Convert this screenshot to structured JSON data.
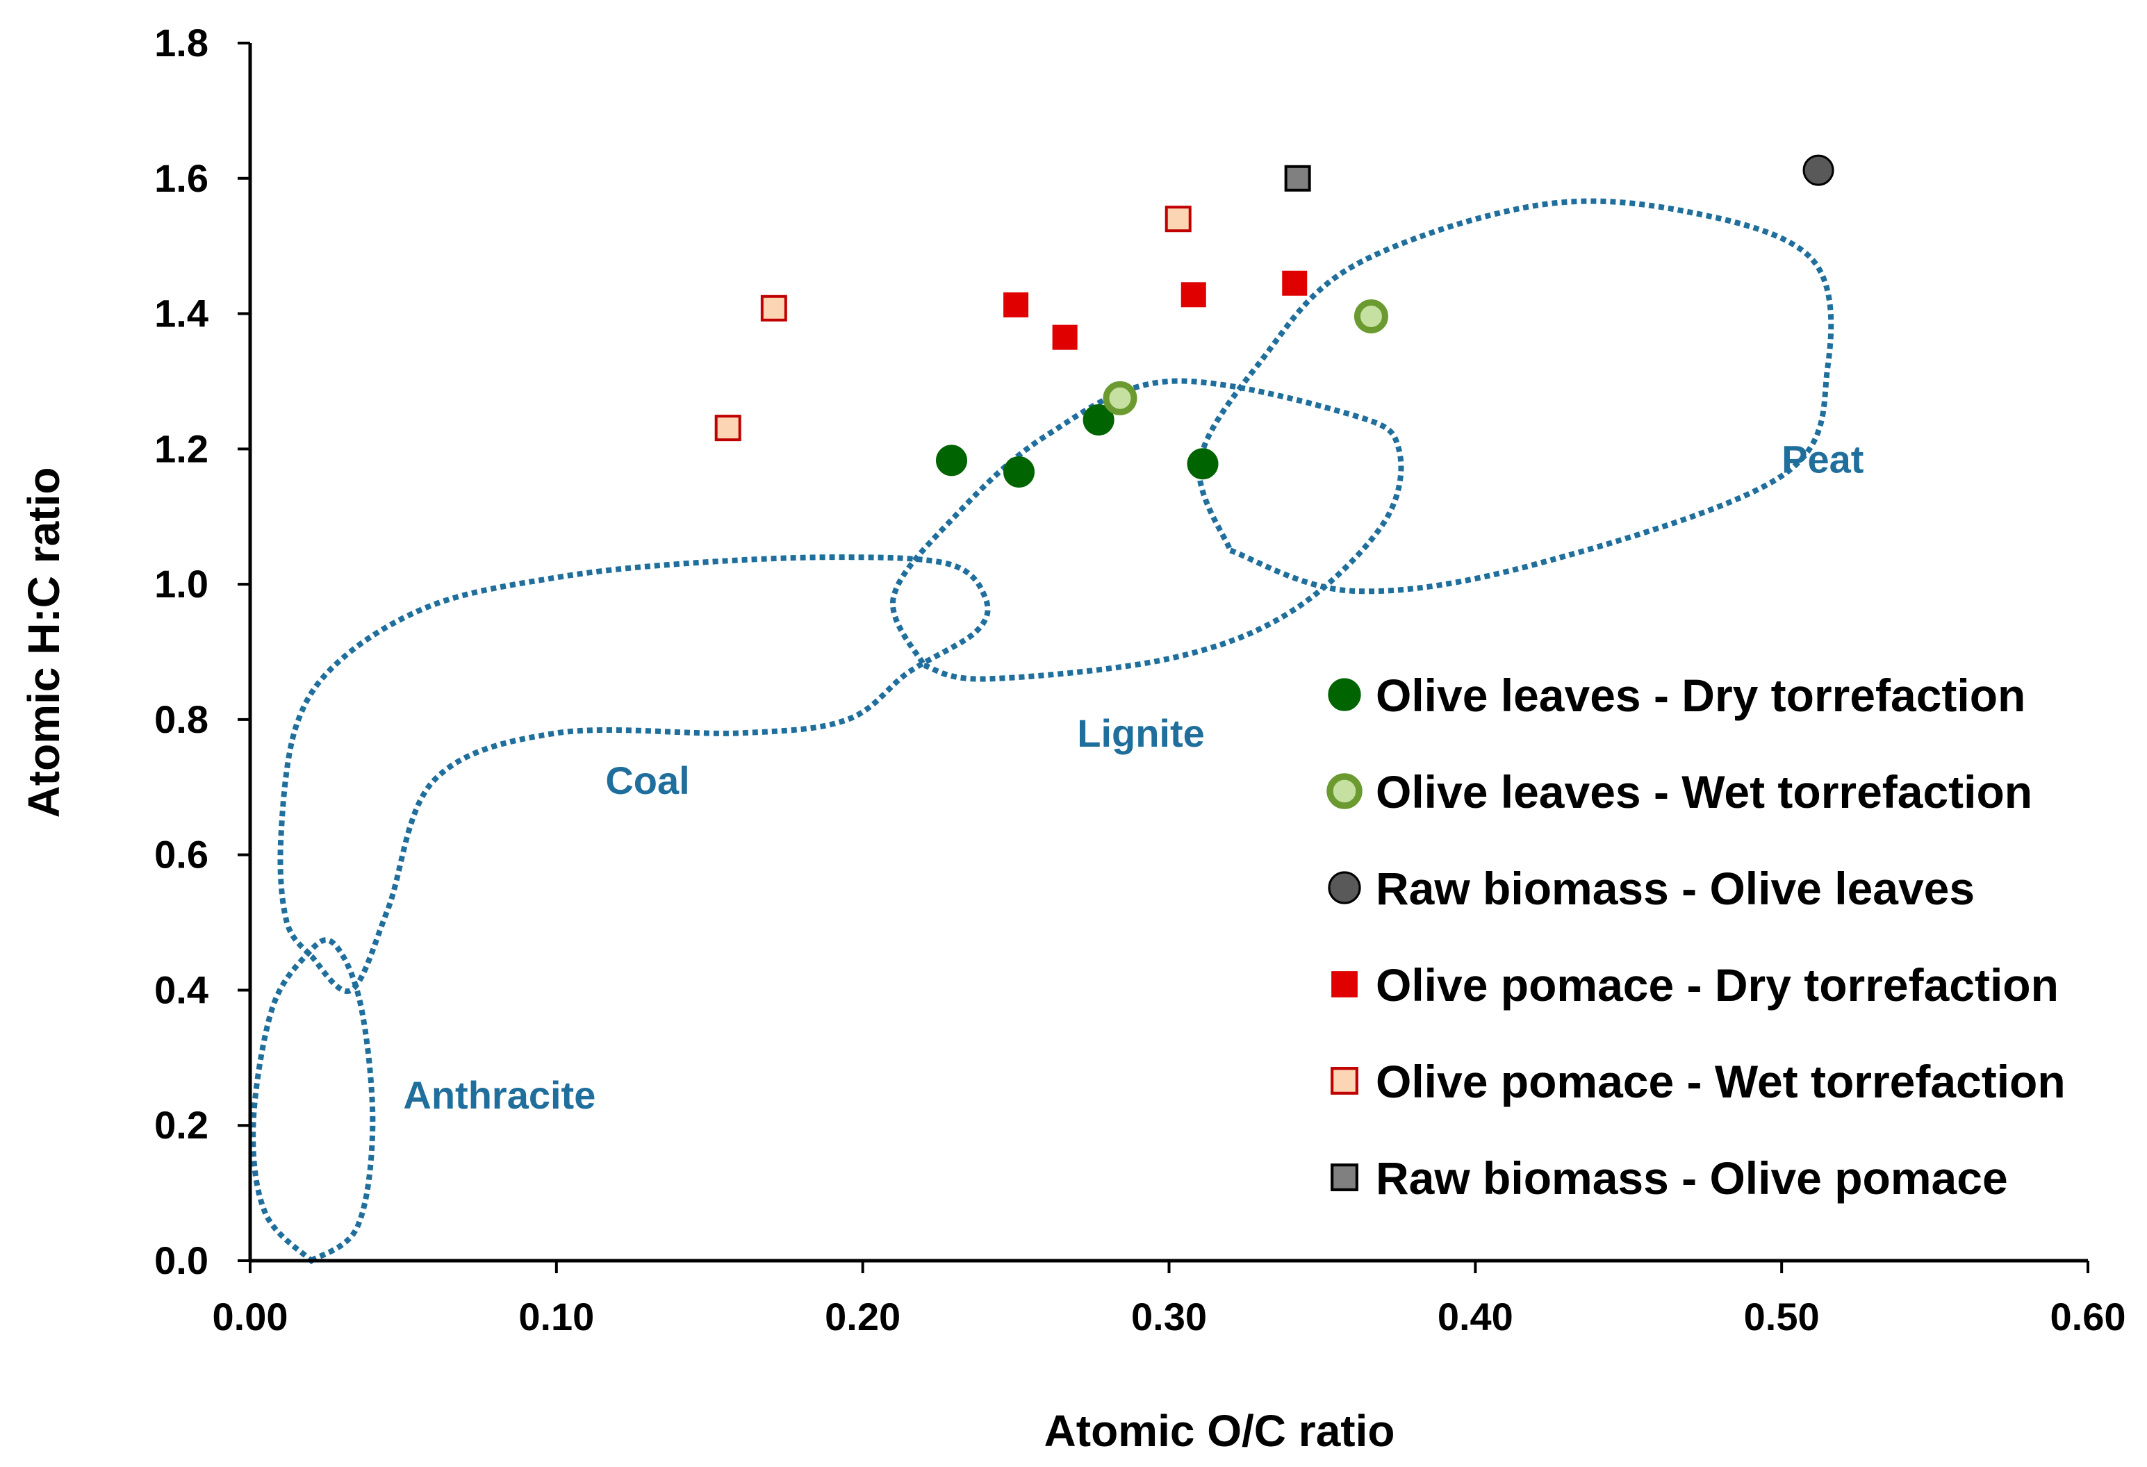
{
  "chart_data": {
    "type": "scatter",
    "title": "",
    "xlabel": "Atomic O/C ratio",
    "ylabel": "Atomic H:C ratio",
    "xlim": [
      0,
      0.6
    ],
    "ylim": [
      0,
      1.8
    ],
    "x_ticks": [
      0.0,
      0.1,
      0.2,
      0.3,
      0.4,
      0.5,
      0.6
    ],
    "x_tick_labels": [
      "0.00",
      "0.10",
      "0.20",
      "0.30",
      "0.40",
      "0.50",
      "0.60"
    ],
    "y_ticks": [
      0.0,
      0.2,
      0.4,
      0.6,
      0.8,
      1.0,
      1.2,
      1.4,
      1.6,
      1.8
    ],
    "y_tick_labels": [
      "0.0",
      "0.2",
      "0.4",
      "0.6",
      "0.8",
      "1.0",
      "1.2",
      "1.4",
      "1.6",
      "1.8"
    ],
    "grid": false,
    "legend_position": "right",
    "series": [
      {
        "name": "Olive leaves - Dry torrefaction",
        "marker": "circle",
        "fill": "#006400",
        "stroke": "#006400",
        "points": [
          {
            "x": 0.229,
            "y": 1.183
          },
          {
            "x": 0.251,
            "y": 1.166
          },
          {
            "x": 0.277,
            "y": 1.243
          },
          {
            "x": 0.311,
            "y": 1.178
          }
        ]
      },
      {
        "name": "Olive leaves - Wet torrefaction",
        "marker": "circle-ring",
        "fill": "#c5e0a0",
        "stroke": "#6b9a30",
        "points": [
          {
            "x": 0.284,
            "y": 1.275
          },
          {
            "x": 0.366,
            "y": 1.396
          }
        ]
      },
      {
        "name": "Raw biomass - Olive leaves",
        "marker": "circle",
        "fill": "#595959",
        "stroke": "#000000",
        "points": [
          {
            "x": 0.512,
            "y": 1.612
          }
        ]
      },
      {
        "name": "Olive pomace - Dry torrefaction",
        "marker": "square",
        "fill": "#e00000",
        "stroke": "#e00000",
        "points": [
          {
            "x": 0.25,
            "y": 1.413
          },
          {
            "x": 0.266,
            "y": 1.365
          },
          {
            "x": 0.308,
            "y": 1.428
          },
          {
            "x": 0.341,
            "y": 1.445
          }
        ]
      },
      {
        "name": "Olive pomace - Wet torrefaction",
        "marker": "square-outline",
        "fill": "#fcd5b4",
        "stroke": "#c00000",
        "points": [
          {
            "x": 0.156,
            "y": 1.231
          },
          {
            "x": 0.171,
            "y": 1.408
          },
          {
            "x": 0.303,
            "y": 1.54
          }
        ]
      },
      {
        "name": "Raw biomass - Olive pomace",
        "marker": "square-outline",
        "fill": "#808080",
        "stroke": "#000000",
        "points": [
          {
            "x": 0.342,
            "y": 1.6
          }
        ]
      }
    ],
    "regions": [
      {
        "name": "Anthracite",
        "label_at": {
          "x": 0.05,
          "y": 0.225
        },
        "path": [
          [
            0.02,
            0.0
          ],
          [
            0.035,
            0.05
          ],
          [
            0.04,
            0.2
          ],
          [
            0.036,
            0.38
          ],
          [
            0.027,
            0.47
          ],
          [
            0.018,
            0.45
          ],
          [
            0.007,
            0.37
          ],
          [
            0.001,
            0.2
          ],
          [
            0.005,
            0.07
          ],
          [
            0.02,
            0.0
          ]
        ]
      },
      {
        "name": "Coal",
        "label_at": {
          "x": 0.116,
          "y": 0.69
        },
        "path": [
          [
            0.02,
            0.45
          ],
          [
            0.033,
            0.4
          ],
          [
            0.045,
            0.52
          ],
          [
            0.06,
            0.71
          ],
          [
            0.1,
            0.78
          ],
          [
            0.16,
            0.78
          ],
          [
            0.195,
            0.8
          ],
          [
            0.215,
            0.87
          ],
          [
            0.237,
            0.93
          ],
          [
            0.24,
            0.98
          ],
          [
            0.228,
            1.03
          ],
          [
            0.19,
            1.04
          ],
          [
            0.14,
            1.03
          ],
          [
            0.1,
            1.01
          ],
          [
            0.06,
            0.97
          ],
          [
            0.03,
            0.89
          ],
          [
            0.015,
            0.79
          ],
          [
            0.01,
            0.62
          ],
          [
            0.012,
            0.5
          ],
          [
            0.02,
            0.45
          ]
        ]
      },
      {
        "name": "Lignite",
        "label_at": {
          "x": 0.27,
          "y": 0.76
        },
        "path": [
          [
            0.22,
            0.88
          ],
          [
            0.24,
            0.86
          ],
          [
            0.3,
            0.89
          ],
          [
            0.34,
            0.96
          ],
          [
            0.37,
            1.09
          ],
          [
            0.375,
            1.2
          ],
          [
            0.36,
            1.25
          ],
          [
            0.3,
            1.3
          ],
          [
            0.26,
            1.22
          ],
          [
            0.23,
            1.1
          ],
          [
            0.21,
            0.98
          ],
          [
            0.22,
            0.88
          ]
        ]
      },
      {
        "name": "Peat",
        "label_at": {
          "x": 0.5,
          "y": 1.165
        },
        "path": [
          [
            0.32,
            1.05
          ],
          [
            0.36,
            0.99
          ],
          [
            0.42,
            1.03
          ],
          [
            0.5,
            1.16
          ],
          [
            0.515,
            1.32
          ],
          [
            0.51,
            1.48
          ],
          [
            0.47,
            1.55
          ],
          [
            0.42,
            1.56
          ],
          [
            0.36,
            1.47
          ],
          [
            0.33,
            1.33
          ],
          [
            0.31,
            1.18
          ],
          [
            0.32,
            1.05
          ]
        ]
      }
    ]
  },
  "colors": {
    "axis": "#000000",
    "region_line": "#1f6e9c",
    "region_label": "#1f6e9c"
  }
}
